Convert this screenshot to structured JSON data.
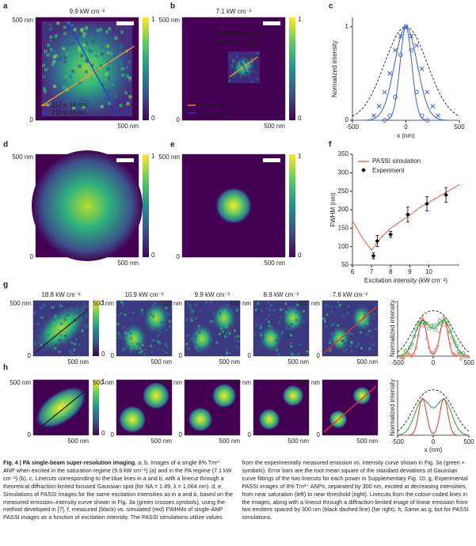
{
  "panels": {
    "a": {
      "label": "a",
      "title": "9.9 kW cm⁻²",
      "legend": [
        "217 ± 18 nm",
        "216 ± 19 nm"
      ]
    },
    "b": {
      "label": "b",
      "title": "7.1 kW cm⁻²",
      "annotation": [
        "Photon localization",
        "accuracy <2 nm"
      ],
      "legend": [
        "81 ± 9 nm",
        "65 ± 7 nm"
      ]
    },
    "c": {
      "type": "scatter",
      "label": "c",
      "xlabel": "x (nm)",
      "ylabel": "Normalized intensity",
      "xlim": [
        -500,
        500
      ],
      "xticks": [
        -500,
        0,
        500
      ],
      "ylim": [
        0,
        1.1
      ],
      "yticks": [
        0,
        1
      ],
      "series": [
        {
          "color": "#3a5fcd",
          "x": [
            -300,
            -250,
            -200,
            -150,
            -100,
            -50,
            0,
            50,
            100,
            150,
            200,
            250,
            300
          ],
          "values": [
            0.05,
            0.15,
            0.3,
            0.5,
            0.75,
            0.9,
            1.0,
            0.9,
            0.8,
            0.55,
            0.3,
            0.15,
            0.05
          ]
        },
        {
          "color": "#3a5fcd",
          "x": [
            -200,
            -150,
            -100,
            -50,
            0,
            50,
            100,
            150,
            200
          ],
          "values": [
            0,
            0.05,
            0.25,
            0.7,
            1.0,
            0.75,
            0.3,
            0.05,
            0
          ]
        }
      ]
    },
    "d": {
      "label": "d"
    },
    "e": {
      "label": "e"
    },
    "f": {
      "type": "line",
      "label": "f",
      "xlabel": "Excitation intensity (kW cm⁻²)",
      "ylabel": "FWHM (nm)",
      "xlim": [
        6,
        11.6
      ],
      "xticks": [
        6,
        7,
        8,
        9,
        10
      ],
      "ylim": [
        50,
        350
      ],
      "yticks": [
        50,
        100,
        150,
        200,
        250,
        300,
        350
      ],
      "series": [
        {
          "name": "PASSI simulation",
          "color": "#e8573a",
          "x": [
            6,
            6.5,
            7,
            7.5,
            8,
            8.5,
            9,
            9.5,
            10,
            10.5,
            11,
            11.6
          ],
          "values": [
            170,
            125,
            90,
            125,
            150,
            168,
            185,
            205,
            220,
            235,
            250,
            268
          ]
        },
        {
          "name": "Experiment",
          "color": "#000000",
          "x": [
            7.1,
            7.3,
            8,
            8.9,
            9.9,
            10.9
          ],
          "values": [
            75,
            115,
            133,
            187,
            216,
            240
          ],
          "errors": [
            8,
            15,
            8,
            20,
            19,
            20
          ]
        }
      ]
    },
    "g": {
      "label": "g",
      "titles": [
        "18.8 kW cm⁻²",
        "10.9 kW cm⁻²",
        "9.9 kW cm⁻²",
        "8.9 kW cm⁻²",
        "7.6 kW cm⁻²"
      ],
      "xticks": [
        -500,
        0,
        500
      ],
      "ylabel": "Normalized intensity"
    },
    "h": {
      "label": "h",
      "xticks": [
        -500,
        0,
        500
      ],
      "ylabel": "Normalized intensity",
      "xlabel": "x (nm)"
    }
  },
  "scale": {
    "top": "500 nm",
    "zero": "0",
    "right": "500 nm"
  },
  "colorbar": {
    "max": "1",
    "min": "0"
  },
  "caption": {
    "title": "Fig. 4 | PA single-beam super-resolution imaging.",
    "text": " a, b, Images of a single 8% Tm³⁺ ANP when excited in the saturation regime (9.9 kW cm⁻²) (a) and in the PA regime (7.1 kW cm⁻²) (b). c, Linecuts corresponding to the blue lines in a and b, with a linecut through a theoretical diffraction-limited focused Gaussian spot (for NA = 1.49, λ = 1,064 nm). d, e, Simulations of PASSI images for the same excitation intensities as in a and b, based on the measured emission–intensity curve shown in Fig. 3a (green crosses symbols), using the method developed in [7]. f, measured (black) vs. simulated (red) FWHMs of single-ANP PASSI images as a function of excitation intensity. The PASSI simulations utilize values from the experimentally measured emission vs. intensity curve shown in Fig. 3a (green × symbols). Error bars are the root mean square of the standard deviations of Gaussian curve fittings of the two linecuts for each power in Supplementary Fig. 10. g, Experimental PASSI images of 8% Tm³⁺ ANPs, separated by 300 nm, excited at decreasing intensities, from near saturation (left) to near threshold (right). Linecuts from the colour-coded lines in the images, along with a linecut through a diffraction-limited image of linear emission from two emitters spaced by 300 nm (black dashed line) (far right). h, Same as g, but for PASSI simulations."
  }
}
